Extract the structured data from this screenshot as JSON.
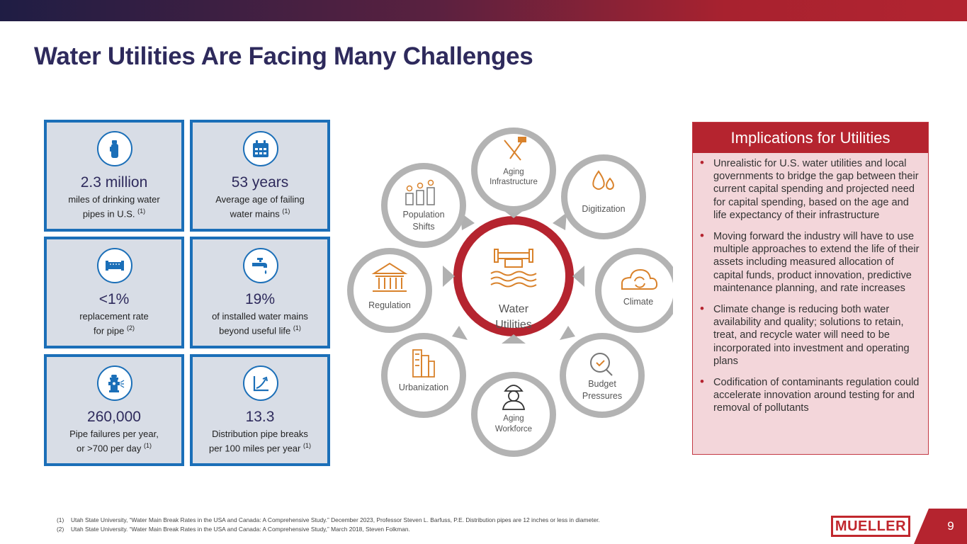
{
  "title": "Water Utilities Are Facing Many Challenges",
  "colors": {
    "navy": "#2e2a5c",
    "blue": "#1b6fb8",
    "red": "#b5242f",
    "tile_bg": "#d8dde6",
    "panel_bg": "#f3d6da",
    "orange": "#d9822b"
  },
  "stats": [
    {
      "value": "2.3 million",
      "line1": "miles of drinking water",
      "line2": "pipes in U.S.",
      "note": "(1)",
      "icon": "water-bottle-icon"
    },
    {
      "value": "53 years",
      "line1": "Average age of failing",
      "line2": "water mains",
      "note": "(1)",
      "icon": "calendar-icon"
    },
    {
      "value": "<1%",
      "line1": "replacement rate",
      "line2": "for pipe",
      "note": "(2)",
      "icon": "pipe-icon"
    },
    {
      "value": "19%",
      "line1": "of installed water mains",
      "line2": "beyond useful life",
      "note": "(1)",
      "icon": "faucet-icon"
    },
    {
      "value": "260,000",
      "line1": "Pipe failures per year,",
      "line2": "or >700 per day",
      "note": "(1)",
      "icon": "fire-hydrant-icon"
    },
    {
      "value": "13.3",
      "line1": "Distribution pipe breaks",
      "line2": "per 100 miles per year",
      "note": "(1)",
      "icon": "trend-up-icon"
    }
  ],
  "diagram": {
    "center_line1": "Water",
    "center_line2": "Utilities",
    "nodes": {
      "aging_infrastructure": {
        "line1": "Aging",
        "line2": "Infrastructure",
        "icon": "tools-icon"
      },
      "digitization": {
        "line1": "Digitization",
        "icon": "droplets-icon"
      },
      "climate": {
        "line1": "Climate",
        "icon": "cloud-cycle-icon"
      },
      "budget_pressures": {
        "line1": "Budget",
        "line2": "Pressures",
        "icon": "magnifier-check-icon"
      },
      "aging_workforce": {
        "line1": "Aging",
        "line2": "Workforce",
        "icon": "worker-icon"
      },
      "urbanization": {
        "line1": "Urbanization",
        "icon": "buildings-icon"
      },
      "regulation": {
        "line1": "Regulation",
        "icon": "government-building-icon"
      },
      "population_shifts": {
        "line1": "Population",
        "line2": "Shifts",
        "icon": "people-coins-icon"
      }
    }
  },
  "implications": {
    "header": "Implications for Utilities",
    "bullets": [
      "Unrealistic for U.S. water utilities and local governments to bridge the gap between their current capital spending and projected need for capital spending, based on the age and life expectancy of their infrastructure",
      "Moving forward the industry will have to use multiple approaches to extend the life of their assets including measured allocation of capital funds, product innovation, predictive maintenance planning, and rate increases",
      "Climate change is reducing both water availability and quality; solutions to retain, treat, and recycle water will need to be incorporated into investment and operating plans",
      "Codification of contaminants regulation could accelerate innovation around testing for and removal of pollutants"
    ]
  },
  "footnotes": [
    {
      "num": "(1)",
      "text": "Utah State University, “Water Main Break Rates in the USA and Canada:  A Comprehensive Study.” December 2023, Professor Steven L. Barfuss, P.E. Distribution pipes are 12 inches or less in diameter."
    },
    {
      "num": "(2)",
      "text": "Utah State University. “Water Main Break Rates in the USA and Canada:  A Comprehensive Study,” March 2018, Steven Folkman."
    }
  ],
  "logo_text": "MUELLER",
  "page_number": "9"
}
